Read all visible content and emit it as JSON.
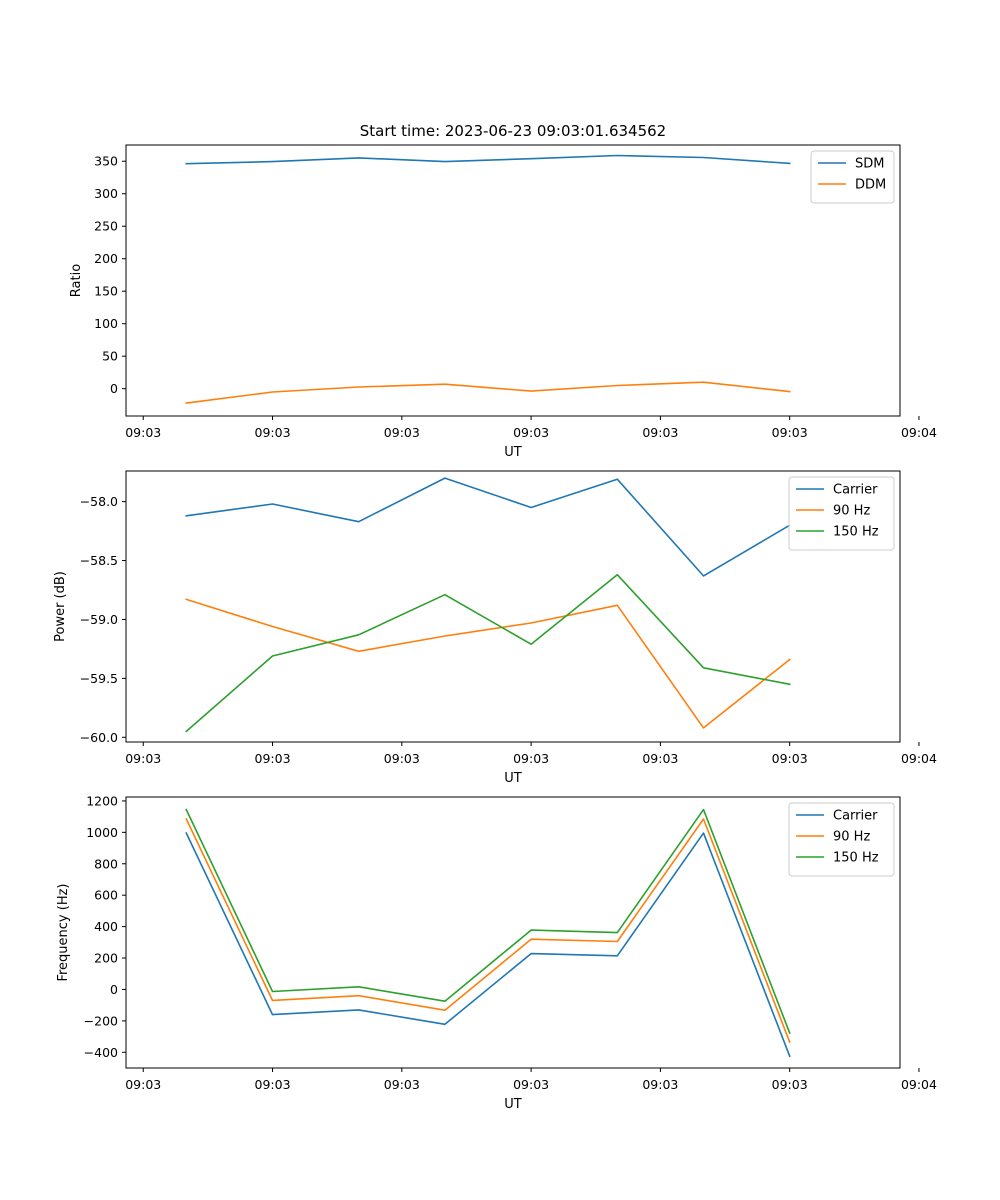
{
  "figure": {
    "title": "Start time: 2023-06-23 09:03:01.634562",
    "colors": {
      "blue": "#1f77b4",
      "orange": "#ff7f0e",
      "green": "#2ca02c"
    }
  },
  "chart_data": [
    {
      "type": "line",
      "xlabel": "UT",
      "ylabel": "Ratio",
      "x": [
        1,
        2,
        3,
        4,
        5,
        6,
        7,
        8
      ],
      "xlim": [
        0.3,
        9.28
      ],
      "xticks": [
        0.5,
        2,
        3.5,
        5,
        6.5,
        8,
        9.5
      ],
      "xtick_labels": [
        "09:03",
        "09:03",
        "09:03",
        "09:03",
        "09:03",
        "09:03",
        "09:04"
      ],
      "ylim": [
        -42,
        375
      ],
      "yticks": [
        0,
        50,
        100,
        150,
        200,
        250,
        300,
        350
      ],
      "ytick_labels": [
        "0",
        "50",
        "100",
        "150",
        "200",
        "250",
        "300",
        "350"
      ],
      "legend_position": "top-right",
      "grid": false,
      "series": [
        {
          "name": "SDM",
          "color": "#1f77b4",
          "values": [
            346.3,
            349.5,
            355.2,
            349.5,
            353.9,
            358.9,
            355.7,
            346.7
          ]
        },
        {
          "name": "DDM",
          "color": "#ff7f0e",
          "values": [
            -22.1,
            -5.0,
            2.6,
            6.9,
            -3.7,
            5.0,
            10.0,
            -4.4
          ]
        }
      ]
    },
    {
      "type": "line",
      "xlabel": "UT",
      "ylabel": "Power (dB)",
      "x": [
        1,
        2,
        3,
        4,
        5,
        6,
        7,
        8
      ],
      "xlim": [
        0.3,
        9.28
      ],
      "xticks": [
        0.5,
        2,
        3.5,
        5,
        6.5,
        8,
        9.5
      ],
      "xtick_labels": [
        "09:03",
        "09:03",
        "09:03",
        "09:03",
        "09:03",
        "09:03",
        "09:04"
      ],
      "ylim": [
        -60.04,
        -57.74
      ],
      "yticks": [
        -60.0,
        -59.5,
        -59.0,
        -58.5,
        -58.0
      ],
      "ytick_labels": [
        "−60.0",
        "−59.5",
        "−59.0",
        "−58.5",
        "−58.0"
      ],
      "legend_position": "top-right",
      "grid": false,
      "series": [
        {
          "name": "Carrier",
          "color": "#1f77b4",
          "values": [
            -58.12,
            -58.02,
            -58.17,
            -57.8,
            -58.05,
            -57.81,
            -58.63,
            -58.2
          ]
        },
        {
          "name": "90 Hz",
          "color": "#ff7f0e",
          "values": [
            -58.83,
            -59.06,
            -59.27,
            -59.14,
            -59.03,
            -58.88,
            -59.92,
            -59.34
          ]
        },
        {
          "name": "150 Hz",
          "color": "#2ca02c",
          "values": [
            -59.95,
            -59.31,
            -59.13,
            -58.79,
            -59.21,
            -58.62,
            -59.41,
            -59.55
          ]
        }
      ]
    },
    {
      "type": "line",
      "xlabel": "UT",
      "ylabel": "Frequency (Hz)",
      "x": [
        1,
        2,
        3,
        4,
        5,
        6,
        7,
        8
      ],
      "xlim": [
        0.3,
        9.28
      ],
      "xticks": [
        0.5,
        2,
        3.5,
        5,
        6.5,
        8,
        9.5
      ],
      "xtick_labels": [
        "09:03",
        "09:03",
        "09:03",
        "09:03",
        "09:03",
        "09:03",
        "09:04"
      ],
      "ylim": [
        -500,
        1225
      ],
      "yticks": [
        -400,
        -200,
        0,
        200,
        400,
        600,
        800,
        1000,
        1200
      ],
      "ytick_labels": [
        "−400",
        "−200",
        "0",
        "200",
        "400",
        "600",
        "800",
        "1000",
        "1200"
      ],
      "legend_position": "top-right",
      "grid": false,
      "series": [
        {
          "name": "Carrier",
          "color": "#1f77b4",
          "values": [
            995,
            -160,
            -130,
            -222,
            228,
            214,
            995,
            -425
          ]
        },
        {
          "name": "90 Hz",
          "color": "#ff7f0e",
          "values": [
            1085,
            -70,
            -40,
            -132,
            320,
            305,
            1085,
            -335
          ]
        },
        {
          "name": "150 Hz",
          "color": "#2ca02c",
          "values": [
            1145,
            -13,
            17,
            -75,
            378,
            362,
            1145,
            -278
          ]
        }
      ]
    }
  ]
}
